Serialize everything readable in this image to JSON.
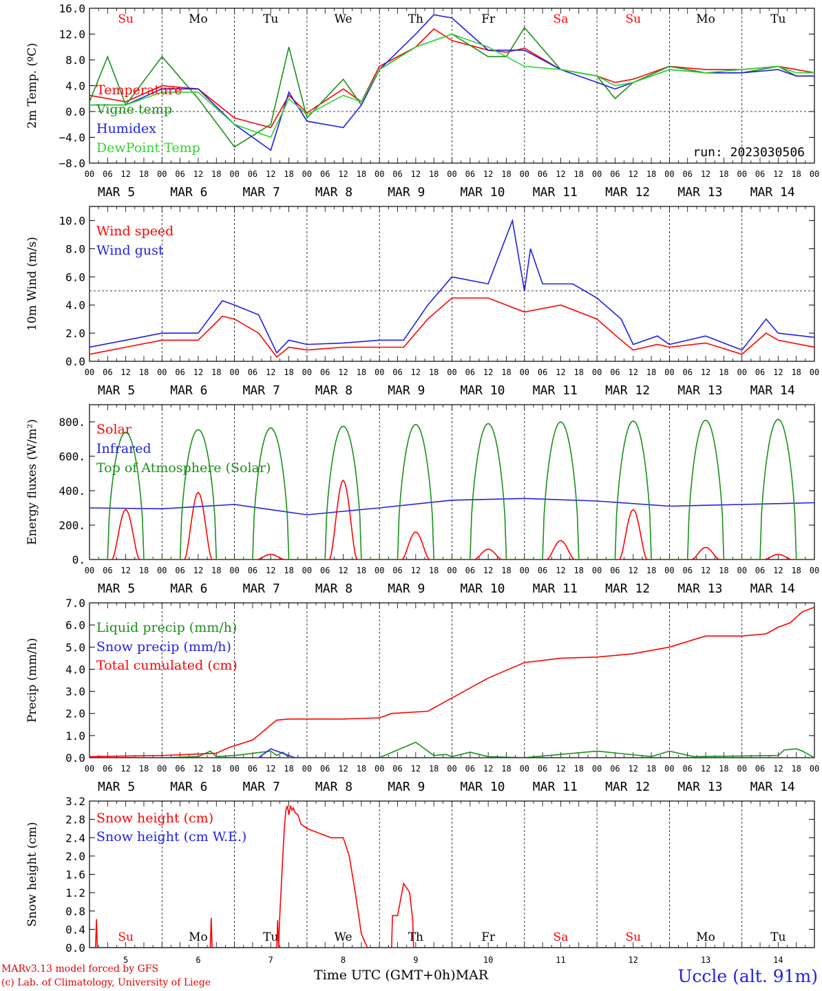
{
  "footer": {
    "credit_line1": "MARv3.13 model forced by GFS",
    "credit_line2": "(c) Lab. of Climatology, University of Liege",
    "x_title": "Time UTC (GMT+0h)MAR",
    "station": "Uccle (alt. 91m)"
  },
  "colors": {
    "red": "#ff0000",
    "green": "#1a8f1a",
    "blue": "#1f1fe6",
    "lightgreen": "#2bd62b",
    "weekend": "#ff0000"
  },
  "chart_data": [
    {
      "type": "line",
      "ylabel": "2m Temp. (ºC)",
      "ylim": [
        -8,
        16
      ],
      "yticks": [
        "16.0",
        "12.0",
        "8.0",
        "4.0",
        "0.0",
        "−4.0",
        "−8.0"
      ],
      "ytick_values": [
        16,
        12,
        8,
        4,
        0,
        -4,
        -8
      ],
      "ref_line": 0,
      "annotation": "run: 2023030506",
      "x_unit": "hours since MAR 5 00 UTC",
      "xlim": [
        0,
        240
      ],
      "hour_ticks": [
        "00",
        "06",
        "12",
        "18"
      ],
      "day_labels": [
        "MAR  5",
        "MAR  6",
        "MAR  7",
        "MAR  8",
        "MAR  9",
        "MAR 10",
        "MAR 11",
        "MAR 12",
        "MAR 13",
        "MAR 14"
      ],
      "weekday_labels": [
        "Su",
        "Mo",
        "Tu",
        "We",
        "Th",
        "Fr",
        "Sa",
        "Su",
        "Mo",
        "Tu"
      ],
      "weekday_weekend": [
        true,
        false,
        false,
        false,
        false,
        false,
        true,
        true,
        false,
        false
      ],
      "weekday_position": "top",
      "series": [
        {
          "name": "Temperature",
          "color": "red",
          "x": [
            0,
            12,
            24,
            36,
            48,
            60,
            66,
            72,
            84,
            90,
            96,
            108,
            114,
            120,
            132,
            138,
            144,
            156,
            168,
            174,
            180,
            192,
            204,
            216,
            228,
            234,
            240
          ],
          "y": [
            2.5,
            1.5,
            4.0,
            3.5,
            -1.0,
            -2.5,
            2.5,
            -0.2,
            3.5,
            1.5,
            7.0,
            10.0,
            12.8,
            11.0,
            9.5,
            9.2,
            9.8,
            6.5,
            5.5,
            4.5,
            5.0,
            7.0,
            6.5,
            6.5,
            7.0,
            6.5,
            6.0
          ]
        },
        {
          "name": "Vigne temp",
          "color": "green",
          "x": [
            0,
            6,
            12,
            24,
            36,
            48,
            60,
            66,
            72,
            84,
            90,
            96,
            108,
            120,
            132,
            138,
            144,
            156,
            168,
            174,
            180,
            192,
            204,
            216,
            228,
            234,
            240
          ],
          "y": [
            1.5,
            8.5,
            1.0,
            8.5,
            2.0,
            -5.5,
            -2.0,
            10.0,
            -1.0,
            5.0,
            1.0,
            6.5,
            10.0,
            12.0,
            8.5,
            8.5,
            13.0,
            6.5,
            5.5,
            2.0,
            4.5,
            7.0,
            6.0,
            6.0,
            7.0,
            5.5,
            5.5
          ]
        },
        {
          "name": "Humidex",
          "color": "blue",
          "x": [
            0,
            12,
            24,
            36,
            48,
            60,
            66,
            72,
            84,
            90,
            96,
            108,
            114,
            120,
            132,
            144,
            156,
            168,
            174,
            180,
            192,
            204,
            216,
            228,
            234,
            240
          ],
          "y": [
            1.0,
            1.0,
            3.5,
            3.5,
            -2.0,
            -6.0,
            3.0,
            -1.5,
            -2.5,
            1.0,
            6.5,
            12.0,
            15.0,
            14.5,
            9.5,
            9.5,
            6.5,
            4.5,
            3.5,
            4.5,
            6.5,
            6.0,
            6.0,
            6.5,
            5.5,
            5.5
          ]
        },
        {
          "name": "DewPoint Temp",
          "color": "lightgreen",
          "x": [
            0,
            12,
            24,
            36,
            48,
            60,
            66,
            72,
            84,
            90,
            96,
            108,
            120,
            132,
            144,
            156,
            168,
            174,
            180,
            192,
            204,
            216,
            228,
            234,
            240
          ],
          "y": [
            1.0,
            1.0,
            3.0,
            3.0,
            -2.0,
            -4.0,
            2.0,
            -0.5,
            2.5,
            1.5,
            6.5,
            10.0,
            12.0,
            10.0,
            7.0,
            6.5,
            5.5,
            4.0,
            4.5,
            6.5,
            6.0,
            6.5,
            7.0,
            6.0,
            6.0
          ]
        }
      ]
    },
    {
      "type": "line",
      "ylabel": "10m Wind (m/s)",
      "ylim": [
        0,
        11
      ],
      "yticks": [
        "10.0",
        "8.0",
        "6.0",
        "4.0",
        "2.0",
        "0.0"
      ],
      "ytick_values": [
        10,
        8,
        6,
        4,
        2,
        0
      ],
      "ref_line": 5,
      "x_unit": "hours since MAR 5 00 UTC",
      "xlim": [
        0,
        240
      ],
      "series": [
        {
          "name": "Wind speed",
          "color": "red",
          "x": [
            0,
            12,
            24,
            36,
            44,
            48,
            56,
            62,
            66,
            72,
            84,
            96,
            104,
            112,
            120,
            132,
            144,
            156,
            168,
            176,
            180,
            188,
            192,
            204,
            216,
            224,
            228,
            240
          ],
          "y": [
            0.5,
            1.0,
            1.5,
            1.5,
            3.2,
            3.0,
            2.0,
            0.3,
            1.0,
            0.8,
            1.0,
            1.0,
            1.0,
            3.0,
            4.5,
            4.5,
            3.5,
            4.0,
            3.0,
            1.5,
            0.8,
            1.2,
            1.0,
            1.3,
            0.5,
            2.0,
            1.5,
            1.0
          ]
        },
        {
          "name": "Wind gust",
          "color": "blue",
          "x": [
            0,
            12,
            24,
            36,
            44,
            48,
            56,
            62,
            66,
            72,
            84,
            96,
            104,
            112,
            120,
            132,
            140,
            144,
            146,
            150,
            160,
            168,
            176,
            180,
            188,
            192,
            204,
            216,
            224,
            228,
            240
          ],
          "y": [
            1.0,
            1.5,
            2.0,
            2.0,
            4.3,
            4.0,
            3.3,
            0.6,
            1.5,
            1.2,
            1.3,
            1.5,
            1.5,
            4.0,
            6.0,
            5.5,
            10.0,
            5.0,
            8.0,
            5.5,
            5.5,
            4.5,
            3.0,
            1.2,
            1.8,
            1.2,
            1.8,
            0.8,
            3.0,
            2.0,
            1.7
          ]
        }
      ]
    },
    {
      "type": "line",
      "ylabel": "Energy fluxes (W/m²)",
      "ylim": [
        0,
        900
      ],
      "yticks": [
        "800.",
        "600.",
        "400.",
        "200.",
        "0."
      ],
      "ytick_values": [
        800,
        600,
        400,
        200,
        0
      ],
      "x_unit": "hours since MAR 5 00 UTC",
      "xlim": [
        0,
        240
      ],
      "series": [
        {
          "name": "Solar",
          "color": "red",
          "daily_peaks": [
            290,
            390,
            30,
            460,
            160,
            60,
            110,
            290,
            70,
            30
          ]
        },
        {
          "name": "Infrared",
          "color": "blue",
          "x": [
            0,
            24,
            48,
            72,
            96,
            120,
            144,
            168,
            192,
            216,
            240
          ],
          "y": [
            300,
            295,
            320,
            260,
            300,
            345,
            355,
            340,
            310,
            320,
            330
          ]
        },
        {
          "name": "Top of Atmosphere (Solar)",
          "color": "green",
          "daily_peaks": [
            740,
            755,
            765,
            775,
            785,
            790,
            800,
            805,
            810,
            815
          ]
        }
      ]
    },
    {
      "type": "line",
      "ylabel": "Precip (mm/h)",
      "ylim": [
        0,
        7
      ],
      "yticks": [
        "7.0",
        "6.0",
        "5.0",
        "4.0",
        "3.0",
        "2.0",
        "1.0",
        "0.0"
      ],
      "ytick_values": [
        7,
        6,
        5,
        4,
        3,
        2,
        1,
        0
      ],
      "x_unit": "hours since MAR 5 00 UTC",
      "xlim": [
        0,
        240
      ],
      "series": [
        {
          "name": "Liquid precip (mm/h)",
          "color": "green",
          "x": [
            0,
            12,
            24,
            36,
            40,
            42,
            48,
            60,
            62,
            64,
            66,
            72,
            96,
            108,
            114,
            118,
            120,
            126,
            132,
            144,
            168,
            186,
            192,
            200,
            228,
            230,
            234,
            236,
            240
          ],
          "y": [
            0,
            0,
            0,
            0.05,
            0.3,
            0.05,
            0.1,
            0.3,
            0.1,
            0.25,
            0,
            0,
            0,
            0.7,
            0.1,
            0.15,
            0.05,
            0.25,
            0.05,
            0,
            0.3,
            0.05,
            0.3,
            0.05,
            0.1,
            0.35,
            0.4,
            0.3,
            0
          ]
        },
        {
          "name": "Snow precip (mm/h)",
          "color": "blue",
          "x": [
            0,
            40,
            56,
            60,
            64,
            68,
            240
          ],
          "y": [
            0,
            0,
            0,
            0.4,
            0.2,
            0,
            0
          ]
        },
        {
          "name": "Total cumulated (cm)",
          "color": "red",
          "x": [
            0,
            24,
            42,
            46,
            54,
            62,
            66,
            84,
            96,
            100,
            112,
            120,
            132,
            144,
            156,
            168,
            180,
            192,
            204,
            216,
            224,
            228,
            232,
            236,
            240
          ],
          "y": [
            0.05,
            0.1,
            0.2,
            0.45,
            0.8,
            1.7,
            1.75,
            1.75,
            1.8,
            2.0,
            2.1,
            2.7,
            3.6,
            4.3,
            4.5,
            4.55,
            4.7,
            5.0,
            5.5,
            5.5,
            5.6,
            5.9,
            6.1,
            6.6,
            6.8
          ]
        }
      ]
    },
    {
      "type": "area",
      "ylabel": "Snow height (cm)",
      "ylim": [
        0,
        3.2
      ],
      "yticks": [
        "3.2",
        "2.8",
        "2.4",
        "2.0",
        "1.6",
        "1.2",
        "0.8",
        "0.4",
        "0.0"
      ],
      "ytick_values": [
        3.2,
        2.8,
        2.4,
        2.0,
        1.6,
        1.2,
        0.8,
        0.4,
        0.0
      ],
      "x_unit": "hours since MAR 5 00 UTC",
      "xlim": [
        0,
        240
      ],
      "day_numbers": [
        "5",
        "6",
        "7",
        "8",
        "9",
        "10",
        "11",
        "12",
        "13",
        "14"
      ],
      "weekday_labels": [
        "Su",
        "Mo",
        "Tu",
        "We",
        "Th",
        "Fr",
        "Sa",
        "Su",
        "Mo",
        "Tu"
      ],
      "weekday_weekend": [
        true,
        false,
        false,
        false,
        false,
        false,
        true,
        true,
        false,
        false
      ],
      "weekday_position": "bottom",
      "series": [
        {
          "name": "Snow height (cm)",
          "color": "red",
          "x": [
            0,
            2,
            2.3,
            2.6,
            40,
            40.3,
            40.6,
            62,
            62.3,
            62.6,
            63,
            64,
            64.5,
            65,
            65.5,
            66,
            66.5,
            67,
            67.5,
            68,
            69,
            70,
            72,
            76,
            80,
            84,
            86,
            88,
            90,
            92,
            100,
            100.3,
            102,
            104,
            106,
            107,
            107.3,
            240
          ],
          "y": [
            0,
            0,
            0.62,
            0,
            0,
            0.65,
            0,
            0,
            0.6,
            0,
            0.7,
            2.0,
            2.6,
            3.0,
            3.1,
            2.9,
            3.1,
            3.0,
            3.05,
            2.95,
            2.9,
            2.7,
            2.6,
            2.5,
            2.4,
            2.4,
            2.0,
            1.2,
            0.3,
            0,
            0,
            0.7,
            0.7,
            1.4,
            1.2,
            0.6,
            0,
            0
          ]
        },
        {
          "name": "Snow height (cm W.E.)",
          "color": "blue",
          "x": [
            0,
            240
          ],
          "y": [
            0,
            0
          ]
        }
      ]
    }
  ]
}
